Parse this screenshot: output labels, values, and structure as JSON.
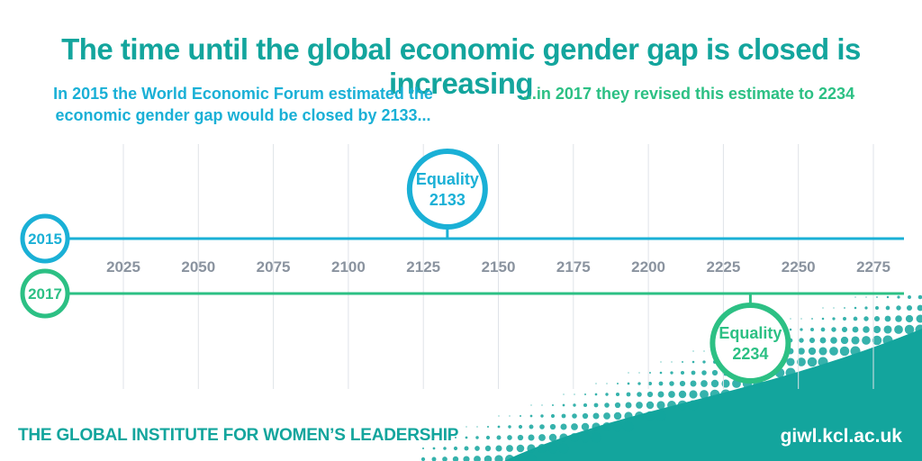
{
  "title": "The time until the global economic gender gap is closed is increasing",
  "subtitle_left": "In 2015 the World Economic Forum estimated the economic gender gap would be closed by 2133...",
  "subtitle_right": "...in 2017 they revised this estimate to 2234",
  "footer": {
    "organization": "THE GLOBAL INSTITUTE FOR WOMEN’S LEADERSHIP",
    "website": "giwl.kcl.ac.uk"
  },
  "colors": {
    "title": "#13a59d",
    "line_2015": "#1ab0d6",
    "line_2017": "#2cc084",
    "tick_text": "#8a939f",
    "grid": "#dfe3e8",
    "corner": "#13a59d"
  },
  "timeline": {
    "axis_years": [
      2025,
      2050,
      2075,
      2100,
      2125,
      2150,
      2175,
      2200,
      2225,
      2250,
      2275
    ],
    "rows": [
      {
        "year_label": "2015",
        "equality_label": "Equality",
        "equality_year": 2133,
        "color": "#1ab0d6",
        "marker_side": "above"
      },
      {
        "year_label": "2017",
        "equality_label": "Equality",
        "equality_year": 2234,
        "color": "#2cc084",
        "marker_side": "below"
      }
    ]
  }
}
